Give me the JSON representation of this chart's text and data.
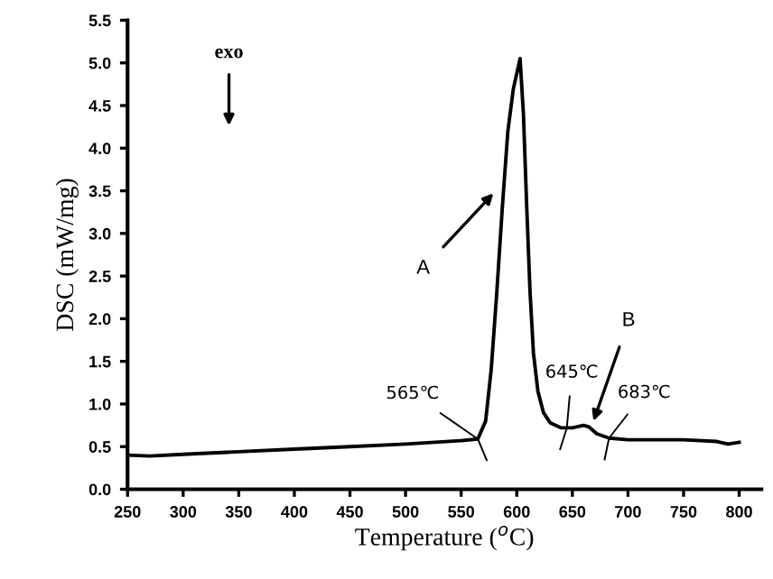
{
  "chart_data": {
    "type": "line",
    "xlabel": "Temperature ($^{o}$C)",
    "ylabel": "DSC (mW/mg)",
    "x": [
      250,
      270,
      300,
      350,
      400,
      450,
      500,
      550,
      565,
      572,
      577,
      582,
      587,
      592,
      597,
      603,
      606,
      609,
      612,
      615,
      619,
      624,
      630,
      640,
      650,
      660,
      665,
      672,
      683,
      700,
      750,
      780,
      790,
      800
    ],
    "series": [
      {
        "color": "#000000",
        "values": [
          0.4,
          0.39,
          0.41,
          0.44,
          0.47,
          0.5,
          0.53,
          0.57,
          0.59,
          0.8,
          1.4,
          2.3,
          3.3,
          4.2,
          4.7,
          5.05,
          4.4,
          3.3,
          2.3,
          1.6,
          1.15,
          0.9,
          0.78,
          0.72,
          0.72,
          0.75,
          0.73,
          0.65,
          0.6,
          0.58,
          0.58,
          0.56,
          0.53,
          0.55
        ]
      }
    ],
    "xlim": [
      250,
      820
    ],
    "ylim": [
      0,
      5.5
    ],
    "xticks": [
      250,
      300,
      350,
      400,
      450,
      500,
      550,
      600,
      650,
      700,
      750,
      800
    ],
    "yticks": [
      {
        "value": 0,
        "label": "0.0"
      },
      0.5,
      {
        "value": 1,
        "label": "1.0"
      },
      1.5,
      {
        "value": 2,
        "label": "2.0"
      },
      2.5,
      {
        "value": 3,
        "label": "3.0"
      },
      3.5,
      {
        "value": 4,
        "label": "4.0"
      },
      4.5,
      {
        "value": 5,
        "label": "5.0"
      },
      5.5
    ],
    "grid": false,
    "legend": false,
    "marker": "none",
    "line_style": "solid",
    "annotations": [
      "exo",
      {
        "text": "A",
        "x": 579,
        "y": 3.47
      },
      {
        "text": "B",
        "x": 669,
        "y": 0.8
      },
      {
        "text": "565℃",
        "x": 565,
        "y": 0.59
      },
      {
        "text": "645℃",
        "x": 645,
        "y": 0.72
      },
      {
        "text": "683℃",
        "x": 683,
        "y": 0.6
      }
    ]
  }
}
